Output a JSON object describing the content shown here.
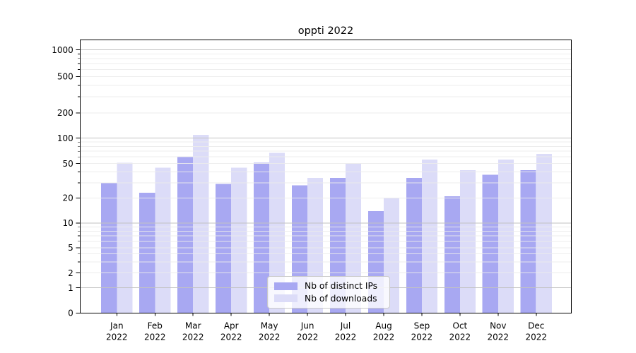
{
  "chart_data": {
    "type": "bar",
    "title": "oppti 2022",
    "categories": [
      "Jan",
      "Feb",
      "Mar",
      "Apr",
      "May",
      "Jun",
      "Jul",
      "Aug",
      "Sep",
      "Oct",
      "Nov",
      "Dec"
    ],
    "year": "2022",
    "series": [
      {
        "name": "Nb of distinct IPs",
        "color": "#a8a8f2",
        "values": [
          30,
          23,
          60,
          29,
          51,
          28,
          34,
          14,
          34,
          21,
          37,
          42
        ]
      },
      {
        "name": "Nb of downloads",
        "color": "#dcdcf8",
        "values": [
          51,
          45,
          110,
          45,
          67,
          34,
          50,
          20,
          56,
          42,
          56,
          65
        ]
      }
    ],
    "yticks": [
      0,
      1,
      2,
      5,
      10,
      20,
      50,
      100,
      200,
      500,
      1000
    ],
    "scale": "symlog",
    "ylim": [
      0,
      1000
    ],
    "grid": "both",
    "legend_position": "lower center",
    "xlabel": "",
    "ylabel": ""
  },
  "colors": {
    "major_grid": "#c2c2c2",
    "minor_grid": "#ebebeb",
    "axis": "#000000",
    "text": "#000000",
    "background": "#ffffff",
    "legend_border": "#c9c9c9"
  }
}
